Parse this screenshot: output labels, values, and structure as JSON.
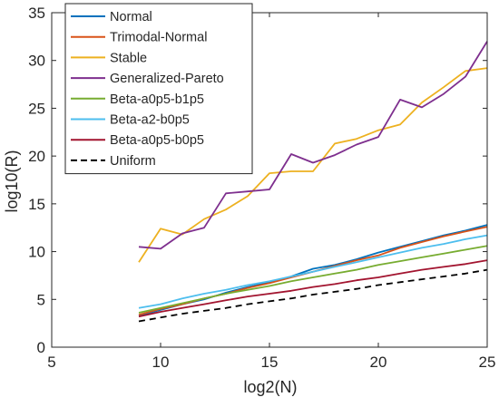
{
  "chart_data": {
    "type": "line",
    "title": "",
    "xlabel": "log2(N)",
    "ylabel": "log10(R)",
    "xlim": [
      5,
      25
    ],
    "ylim": [
      0,
      35
    ],
    "xticks": [
      5,
      10,
      15,
      20,
      25
    ],
    "yticks": [
      0,
      5,
      10,
      15,
      20,
      25,
      30,
      35
    ],
    "grid": false,
    "legend_position": "top-left",
    "x": [
      9,
      10,
      11,
      12,
      13,
      14,
      15,
      16,
      17,
      18,
      19,
      20,
      21,
      22,
      23,
      24,
      25
    ],
    "series": [
      {
        "name": "Normal",
        "color": "#0072BD",
        "dash": "solid",
        "values": [
          3.3,
          3.9,
          4.5,
          5.0,
          5.7,
          6.3,
          6.8,
          7.4,
          8.2,
          8.6,
          9.2,
          9.9,
          10.5,
          11.1,
          11.7,
          12.2,
          12.8
        ]
      },
      {
        "name": "Trimodal-Normal",
        "color": "#D95319",
        "dash": "solid",
        "values": [
          3.4,
          4.0,
          4.5,
          5.1,
          5.6,
          6.2,
          6.7,
          7.3,
          7.9,
          8.5,
          9.1,
          9.6,
          10.4,
          11.0,
          11.6,
          12.1,
          12.6
        ]
      },
      {
        "name": "Stable",
        "color": "#EDB120",
        "dash": "solid",
        "values": [
          8.9,
          12.4,
          11.8,
          13.4,
          14.4,
          15.8,
          18.2,
          18.4,
          18.4,
          21.3,
          21.8,
          22.7,
          23.3,
          25.6,
          27.2,
          28.9,
          29.2
        ]
      },
      {
        "name": "Generalized-Pareto",
        "color": "#7E2F8E",
        "dash": "solid",
        "values": [
          10.5,
          10.3,
          11.9,
          12.5,
          16.1,
          16.3,
          16.5,
          20.2,
          19.3,
          20.1,
          21.2,
          22.0,
          25.9,
          25.1,
          26.5,
          28.3,
          32.0
        ]
      },
      {
        "name": "Beta-a0p5-b1p5",
        "color": "#77AC30",
        "dash": "solid",
        "values": [
          3.6,
          4.1,
          4.6,
          5.1,
          5.6,
          6.0,
          6.4,
          6.9,
          7.3,
          7.7,
          8.1,
          8.6,
          9.0,
          9.4,
          9.8,
          10.2,
          10.6
        ]
      },
      {
        "name": "Beta-a2-b0p5",
        "color": "#4DBEEE",
        "dash": "solid",
        "values": [
          4.1,
          4.5,
          5.1,
          5.6,
          6.0,
          6.5,
          6.9,
          7.4,
          7.9,
          8.4,
          8.9,
          9.4,
          9.9,
          10.4,
          10.8,
          11.3,
          11.7
        ]
      },
      {
        "name": "Beta-a0p5-b0p5",
        "color": "#A2142F",
        "dash": "solid",
        "values": [
          3.2,
          3.7,
          4.1,
          4.5,
          4.9,
          5.3,
          5.6,
          5.9,
          6.3,
          6.6,
          7.0,
          7.3,
          7.7,
          8.1,
          8.4,
          8.7,
          9.1
        ]
      },
      {
        "name": "Uniform",
        "color": "#000000",
        "dash": "dashed",
        "values": [
          2.7,
          3.1,
          3.5,
          3.8,
          4.1,
          4.5,
          4.8,
          5.1,
          5.5,
          5.8,
          6.1,
          6.5,
          6.8,
          7.1,
          7.4,
          7.7,
          8.1
        ]
      }
    ]
  }
}
